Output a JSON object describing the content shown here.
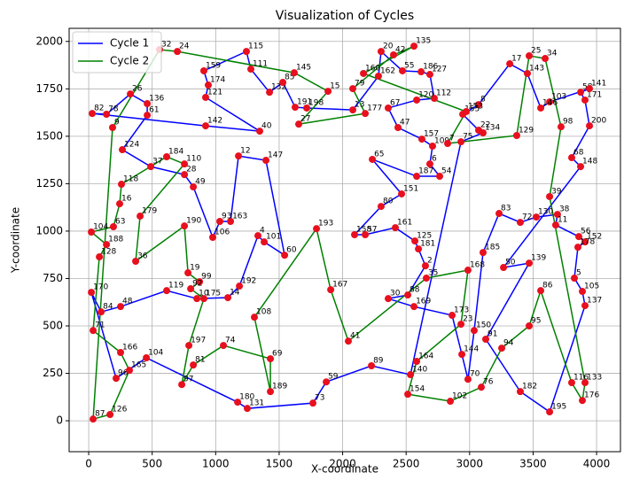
{
  "chart_data": {
    "type": "cycles",
    "title": "Visualization of Cycles",
    "xlabel": "X-coordinate",
    "ylabel": "Y-coordinate",
    "xlim": [
      -154,
      4188
    ],
    "ylim": [
      -163,
      2069
    ],
    "xticks": [
      0,
      500,
      1000,
      1500,
      2000,
      2500,
      3000,
      3500,
      4000
    ],
    "yticks": [
      0,
      250,
      500,
      750,
      1000,
      1250,
      1500,
      1750,
      2000
    ],
    "grid": true,
    "legend": "upper left",
    "point_color": "#e8101e",
    "series": [
      {
        "name": "Cycle 1",
        "color": "#0000ff",
        "labels": [
          "140",
          "89",
          "59",
          "73",
          "131",
          "180",
          "104",
          "96",
          "170",
          "84",
          "48",
          "119",
          "10",
          "14",
          "192",
          "4",
          "101",
          "60",
          "147",
          "12",
          "163",
          "93",
          "106",
          "49",
          "28",
          "37",
          "124",
          "61",
          "136",
          "26",
          "78",
          "82",
          "142",
          "40",
          "121",
          "174",
          "159",
          "115",
          "111",
          "132",
          "85",
          "191",
          "198",
          "13",
          "162",
          "20",
          "55",
          "186",
          "127",
          "112",
          "120",
          "67",
          "47",
          "157",
          "109",
          "6",
          "54",
          "187",
          "65",
          "151",
          "80",
          "158",
          "57",
          "161",
          "125",
          "181",
          "2",
          "88",
          "30",
          "169",
          "173",
          "144",
          "70",
          "150",
          "185",
          "83",
          "72",
          "130",
          "38",
          "11",
          "56",
          "152",
          "178",
          "5",
          "105",
          "137",
          "195",
          "182",
          "91",
          "139",
          "50",
          "148",
          "68",
          "200",
          "171",
          "58",
          "141",
          "103",
          "146",
          "143",
          "17",
          "8",
          "155",
          "22",
          "134",
          "75"
        ],
        "x": [
          2534,
          2227,
          1871,
          1766,
          1249,
          1173,
          454,
          216,
          21,
          98,
          251,
          614,
          852,
          1096,
          1187,
          1333,
          1382,
          1543,
          1396,
          1180,
          1117,
          1033,
          977,
          824,
          754,
          489,
          265,
          461,
          461,
          328,
          140,
          28,
          921,
          1347,
          921,
          942,
          907,
          1242,
          1277,
          1424,
          1529,
          1626,
          1717,
          2080,
          2282,
          2303,
          2471,
          2618,
          2687,
          2722,
          2583,
          2359,
          2436,
          2624,
          2708,
          2687,
          2764,
          2583,
          2234,
          2464,
          2303,
          2094,
          2178,
          2415,
          2569,
          2597,
          2652,
          2513,
          2359,
          2562,
          2862,
          2939,
          2987,
          3036,
          3106,
          3232,
          3399,
          3525,
          3692,
          3678,
          3860,
          3909,
          3853,
          3825,
          3888,
          3909,
          3630,
          3399,
          3127,
          3469,
          3267,
          3874,
          3804,
          3944,
          3909,
          3874,
          3944,
          3630,
          3560,
          3455,
          3316,
          3071,
          2946,
          3071,
          3106,
          2932
        ],
        "y": [
          243,
          290,
          205,
          93,
          65,
          98,
          332,
          224,
          677,
          574,
          602,
          686,
          644,
          649,
          710,
          976,
          943,
          873,
          1373,
          1396,
          1051,
          1051,
          967,
          1233,
          1298,
          1340,
          1429,
          1611,
          1672,
          1723,
          1616,
          1620,
          1555,
          1527,
          1705,
          1770,
          1845,
          1947,
          1854,
          1732,
          1784,
          1653,
          1649,
          1639,
          1817,
          1947,
          1845,
          1840,
          1826,
          1700,
          1691,
          1649,
          1546,
          1485,
          1448,
          1354,
          1289,
          1289,
          1378,
          1196,
          1130,
          981,
          981,
          1018,
          948,
          906,
          817,
          663,
          644,
          602,
          556,
          350,
          219,
          476,
          887,
          1093,
          1046,
          1074,
          1088,
          1032,
          971,
          943,
          915,
          752,
          682,
          607,
          47,
          154,
          430,
          831,
          808,
          1340,
          1387,
          1555,
          1691,
          1732,
          1751,
          1681,
          1649,
          1831,
          1882,
          1667,
          1616,
          1532,
          1518,
          1471
        ]
      },
      {
        "name": "Cycle 2",
        "color": "#008000",
        "labels": [
          "87",
          "126",
          "165",
          "166",
          "71",
          "128",
          "188",
          "104",
          "63",
          "16",
          "118",
          "184",
          "110",
          "179",
          "36",
          "190",
          "19",
          "99",
          "92",
          "175",
          "197",
          "97",
          "81",
          "74",
          "69",
          "189",
          "108",
          "193",
          "167",
          "41",
          "35",
          "168",
          "23",
          "164",
          "154",
          "102",
          "76",
          "94",
          "95",
          "86",
          "116",
          "176",
          "133",
          "39",
          "98",
          "34",
          "25",
          "129",
          "7",
          "153",
          "160",
          "135",
          "42",
          "79",
          "177",
          "27",
          "15",
          "145",
          "24",
          "32",
          "9"
        ],
        "x": [
          35,
          168,
          321,
          251,
          35,
          84,
          140,
          21,
          195,
          244,
          258,
          614,
          754,
          405,
          370,
          754,
          782,
          873,
          803,
          907,
          789,
          733,
          824,
          1061,
          1431,
          1431,
          1305,
          1794,
          1906,
          2045,
          2659,
          2987,
          2932,
          2583,
          2513,
          2848,
          3092,
          3253,
          3469,
          3560,
          3804,
          3888,
          3909,
          3630,
          3720,
          3595,
          3469,
          3371,
          2827,
          2973,
          2164,
          2562,
          2401,
          2080,
          2178,
          1654,
          1885,
          1619,
          698,
          558,
          188
        ],
        "y": [
          9,
          33,
          266,
          360,
          476,
          864,
          929,
          995,
          1023,
          1144,
          1247,
          1392,
          1354,
          1079,
          841,
          1027,
          780,
          733,
          696,
          644,
          397,
          191,
          294,
          397,
          327,
          154,
          546,
          1013,
          691,
          420,
          752,
          794,
          509,
          313,
          140,
          103,
          177,
          383,
          500,
          686,
          201,
          107,
          201,
          1182,
          1550,
          1910,
          1924,
          1504,
          1462,
          1630,
          1831,
          1975,
          1929,
          1751,
          1620,
          1564,
          1737,
          1835,
          1947,
          1957,
          1546
        ]
      }
    ]
  }
}
